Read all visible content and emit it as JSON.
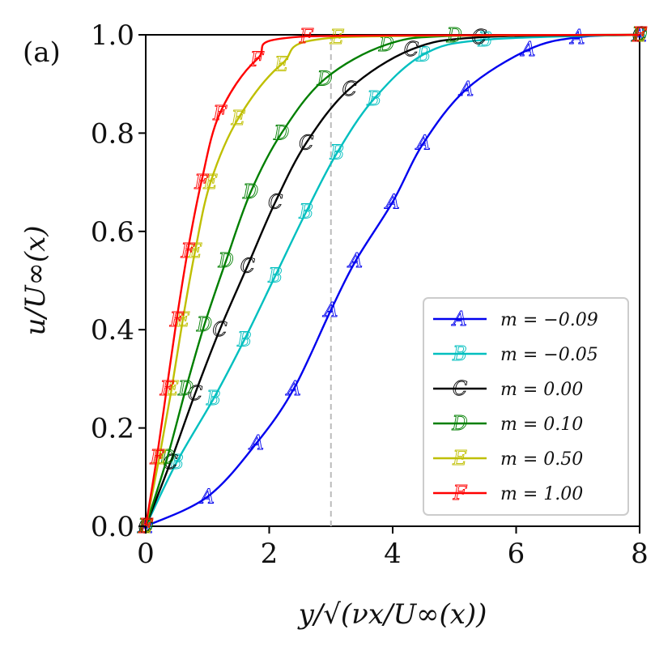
{
  "chart_data": {
    "type": "line",
    "panel_label": "(a)",
    "xlabel": "y/√(νx/U∞(x))",
    "ylabel": "u/U∞(x)",
    "xlim": [
      0,
      8
    ],
    "ylim": [
      0,
      1
    ],
    "xticks": [
      "0",
      "2",
      "4",
      "6",
      "8"
    ],
    "yticks": [
      "0.0",
      "0.2",
      "0.4",
      "0.6",
      "0.8",
      "1.0"
    ],
    "reference_line": {
      "x": 3.0,
      "style": "dashed",
      "color": "#bbbbbb"
    },
    "legend": {
      "placement": "lower-right"
    },
    "series": [
      {
        "marker": "A",
        "name": "m = −0.09",
        "color": "#0000ee",
        "points": [
          [
            0,
            0
          ],
          [
            1.0,
            0.06
          ],
          [
            1.8,
            0.17
          ],
          [
            2.4,
            0.28
          ],
          [
            3.0,
            0.44
          ],
          [
            3.4,
            0.54
          ],
          [
            4.0,
            0.66
          ],
          [
            4.5,
            0.78
          ],
          [
            5.2,
            0.89
          ],
          [
            6.2,
            0.97
          ],
          [
            7.0,
            0.995
          ],
          [
            8.0,
            1.0
          ]
        ]
      },
      {
        "marker": "B",
        "name": "m = −0.05",
        "color": "#00bfbf",
        "points": [
          [
            0,
            0
          ],
          [
            0.5,
            0.13
          ],
          [
            1.1,
            0.26
          ],
          [
            1.6,
            0.38
          ],
          [
            2.1,
            0.51
          ],
          [
            2.6,
            0.64
          ],
          [
            3.1,
            0.76
          ],
          [
            3.7,
            0.87
          ],
          [
            4.5,
            0.96
          ],
          [
            5.5,
            0.99
          ],
          [
            8.0,
            1.0
          ]
        ]
      },
      {
        "marker": "C",
        "name": "m = 0.00",
        "color": "#000000",
        "points": [
          [
            0,
            0
          ],
          [
            0.4,
            0.13
          ],
          [
            0.8,
            0.27
          ],
          [
            1.2,
            0.4
          ],
          [
            1.65,
            0.53
          ],
          [
            2.1,
            0.66
          ],
          [
            2.6,
            0.78
          ],
          [
            3.3,
            0.89
          ],
          [
            4.3,
            0.97
          ],
          [
            5.4,
            0.995
          ],
          [
            8.0,
            1.0
          ]
        ]
      },
      {
        "marker": "D",
        "name": "m = 0.10",
        "color": "#007f00",
        "points": [
          [
            0,
            0
          ],
          [
            0.35,
            0.14
          ],
          [
            0.65,
            0.28
          ],
          [
            0.95,
            0.41
          ],
          [
            1.3,
            0.54
          ],
          [
            1.7,
            0.68
          ],
          [
            2.2,
            0.8
          ],
          [
            2.9,
            0.91
          ],
          [
            3.9,
            0.98
          ],
          [
            5.0,
            0.998
          ],
          [
            8.0,
            1.0
          ]
        ]
      },
      {
        "marker": "E",
        "name": "m = 0.50",
        "color": "#bfbf00",
        "points": [
          [
            0,
            0
          ],
          [
            0.22,
            0.14
          ],
          [
            0.42,
            0.28
          ],
          [
            0.6,
            0.42
          ],
          [
            0.8,
            0.56
          ],
          [
            1.05,
            0.7
          ],
          [
            1.5,
            0.83
          ],
          [
            2.2,
            0.94
          ],
          [
            3.1,
            0.995
          ],
          [
            8.0,
            1.0
          ]
        ]
      },
      {
        "marker": "F",
        "name": "m = 1.00",
        "color": "#ff0000",
        "points": [
          [
            0,
            0
          ],
          [
            0.18,
            0.14
          ],
          [
            0.34,
            0.28
          ],
          [
            0.5,
            0.42
          ],
          [
            0.68,
            0.56
          ],
          [
            0.9,
            0.7
          ],
          [
            1.2,
            0.84
          ],
          [
            1.8,
            0.95
          ],
          [
            2.6,
            0.997
          ],
          [
            8.0,
            1.0
          ]
        ]
      }
    ]
  }
}
